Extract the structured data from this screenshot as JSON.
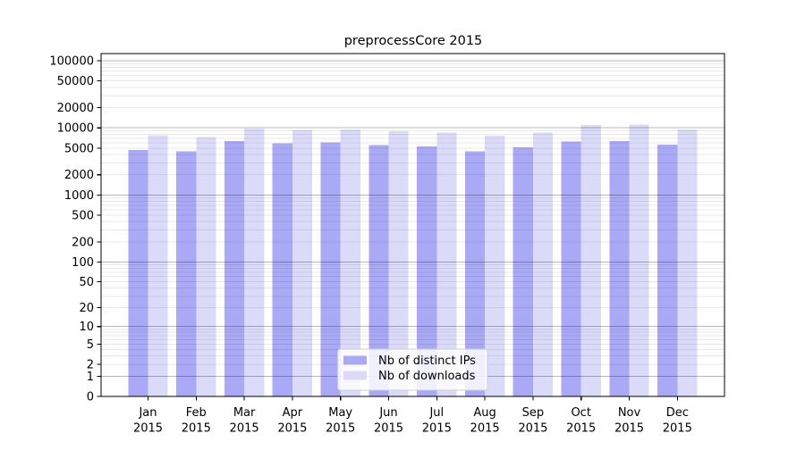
{
  "title": "preprocessCore 2015",
  "chart_data": {
    "type": "bar",
    "title": "preprocessCore 2015",
    "categories": [
      "Jan",
      "Feb",
      "Mar",
      "Apr",
      "May",
      "Jun",
      "Jul",
      "Aug",
      "Sep",
      "Oct",
      "Nov",
      "Dec"
    ],
    "x_tick_second_line": "2015",
    "series": [
      {
        "name": "Nb of distinct IPs",
        "color": "#a9a9f6",
        "values": [
          4700,
          4500,
          6400,
          5850,
          6100,
          5500,
          5300,
          4500,
          5100,
          6250,
          6350,
          5650
        ]
      },
      {
        "name": "Nb of downloads",
        "color": "#dbdbf9",
        "values": [
          7700,
          7300,
          9800,
          9270,
          9450,
          8900,
          8550,
          7650,
          8450,
          11000,
          11150,
          9450
        ]
      }
    ],
    "y_scale": "log(1+x)",
    "y_ticks": [
      0,
      1,
      2,
      5,
      10,
      20,
      50,
      100,
      200,
      500,
      1000,
      2000,
      5000,
      10000,
      20000,
      50000,
      100000
    ],
    "ylim": [
      0,
      100000
    ],
    "grid": true,
    "legend": {
      "position": "lower-center",
      "entries": [
        "Nb of distinct IPs",
        "Nb of downloads"
      ]
    }
  }
}
